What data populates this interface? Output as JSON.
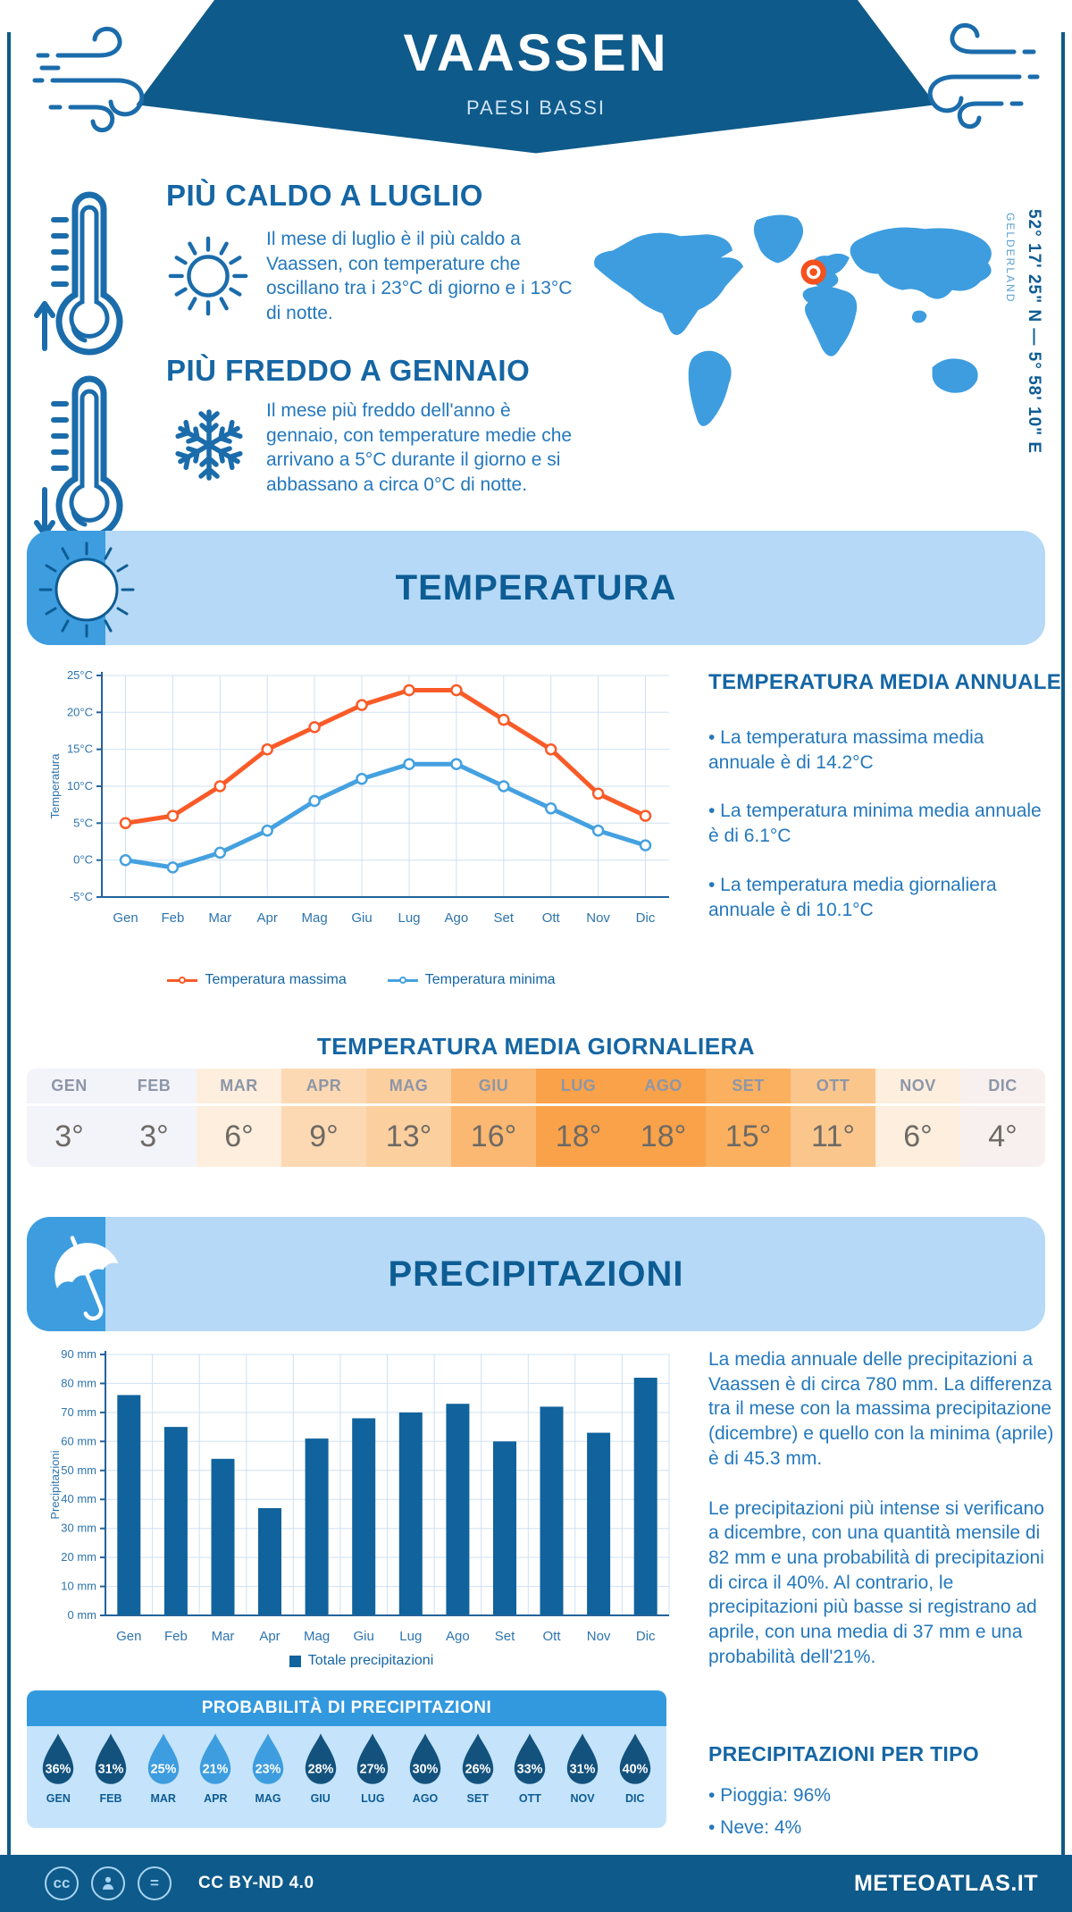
{
  "colors": {
    "primary_dark_blue": "#0e5a8a",
    "heading_blue": "#1566a4",
    "body_blue": "#2478bd",
    "band_light_blue": "#b5d9f6",
    "band_icon_blue": "#3d9ddf",
    "map_blue": "#3d9ddf",
    "marker_orange": "#f4511e",
    "temp_max_orange": "#f95b28",
    "temp_min_blue": "#45a1e0",
    "bar_blue": "#10639c",
    "prob_header_blue": "#3399de",
    "prob_body_blue": "#c5e4fb",
    "drop_dark": "#14527e",
    "drop_light": "#3d9ddf"
  },
  "header": {
    "title": "VAASSEN",
    "subtitle": "PAESI BASSI"
  },
  "location": {
    "coordinates": "52° 17' 25\" N — 5° 58' 10\" E",
    "region": "GELDERLAND"
  },
  "highlights": {
    "warmest": {
      "title": "PIÙ CALDO A LUGLIO",
      "text": "Il mese di luglio è il più caldo a Vaassen, con temperature che oscillano tra i 23°C di giorno e i 13°C di notte."
    },
    "coldest": {
      "title": "PIÙ FREDDO A GENNAIO",
      "text": "Il mese più freddo dell'anno è gennaio, con temperature medie che arrivano a 5°C durante il giorno e si abbassano a circa 0°C di notte."
    }
  },
  "temperature": {
    "section_title": "TEMPERATURA",
    "annual": {
      "title": "TEMPERATURA MEDIA ANNUALE",
      "bullets": [
        "• La temperatura massima media annuale è di 14.2°C",
        "• La temperatura minima media annuale è di 6.1°C",
        "• La temperatura media giornaliera annuale è di 10.1°C"
      ]
    },
    "daily": {
      "title": "TEMPERATURA MEDIA GIORNALIERA",
      "months": [
        "GEN",
        "FEB",
        "MAR",
        "APR",
        "MAG",
        "GIU",
        "LUG",
        "AGO",
        "SET",
        "OTT",
        "NOV",
        "DIC"
      ],
      "values": [
        "3°",
        "3°",
        "6°",
        "9°",
        "13°",
        "16°",
        "18°",
        "18°",
        "15°",
        "11°",
        "6°",
        "4°"
      ],
      "cell_colors": [
        "#f3f3fa",
        "#f3f3fa",
        "#fdeedd",
        "#fdd9b3",
        "#fccf9e",
        "#fab873",
        "#f9a24a",
        "#f9a24a",
        "#fab05f",
        "#fbc68c",
        "#fdeedd",
        "#f7f0ee"
      ]
    }
  },
  "precipitation": {
    "section_title": "PRECIPITAZIONI",
    "summary": [
      "La media annuale delle precipitazioni a Vaassen è di circa 780 mm. La differenza tra il mese con la massima precipitazione (dicembre) e quello con la minima (aprile) è di 45.3 mm.",
      "Le precipitazioni più intense si verificano a dicembre, con una quantità mensile di 82 mm e una probabilità di precipitazioni di circa il 40%. Al contrario, le precipitazioni più basse si registrano ad aprile, con una media di 37 mm e una probabilità dell'21%."
    ],
    "probability": {
      "title": "PROBABILITÀ DI PRECIPITAZIONI",
      "months": [
        "GEN",
        "FEB",
        "MAR",
        "APR",
        "MAG",
        "GIU",
        "LUG",
        "AGO",
        "SET",
        "OTT",
        "NOV",
        "DIC"
      ],
      "values": [
        "36%",
        "31%",
        "25%",
        "21%",
        "23%",
        "28%",
        "27%",
        "30%",
        "26%",
        "33%",
        "31%",
        "40%"
      ],
      "drop_colors": [
        "#14527e",
        "#14527e",
        "#3d9ddf",
        "#3d9ddf",
        "#3d9ddf",
        "#14527e",
        "#14527e",
        "#14527e",
        "#14527e",
        "#14527e",
        "#14527e",
        "#14527e"
      ]
    },
    "by_type": {
      "title": "PRECIPITAZIONI PER TIPO",
      "bullets": [
        "• Pioggia: 96%",
        "• Neve: 4%"
      ]
    }
  },
  "chart_data": [
    {
      "type": "line",
      "title": "Temperatura",
      "categories": [
        "Gen",
        "Feb",
        "Mar",
        "Apr",
        "Mag",
        "Giu",
        "Lug",
        "Ago",
        "Set",
        "Ott",
        "Nov",
        "Dic"
      ],
      "series": [
        {
          "name": "Temperatura massima",
          "color": "#f95b28",
          "values": [
            5,
            6,
            10,
            15,
            18,
            21,
            23,
            23,
            19,
            15,
            9,
            6
          ]
        },
        {
          "name": "Temperatura minima",
          "color": "#45a1e0",
          "values": [
            0,
            -1,
            1,
            4,
            8,
            11,
            13,
            13,
            10,
            7,
            4,
            2
          ]
        }
      ],
      "xlabel": "",
      "ylabel": "Temperatura",
      "ylim": [
        -5,
        25
      ],
      "ytick_step": 5,
      "ytick_suffix": "°C",
      "grid": true,
      "legend_position": "bottom"
    },
    {
      "type": "bar",
      "title": "Precipitazioni",
      "categories": [
        "Gen",
        "Feb",
        "Mar",
        "Apr",
        "Mag",
        "Giu",
        "Lug",
        "Ago",
        "Set",
        "Ott",
        "Nov",
        "Dic"
      ],
      "series": [
        {
          "name": "Totale precipitazioni",
          "color": "#10639c",
          "values": [
            76,
            65,
            54,
            37,
            61,
            68,
            70,
            73,
            60,
            72,
            63,
            82
          ]
        }
      ],
      "xlabel": "",
      "ylabel": "Precipitazioni",
      "ylim": [
        0,
        90
      ],
      "ytick_step": 10,
      "ytick_suffix": " mm",
      "grid": true,
      "legend_position": "bottom"
    }
  ],
  "footer": {
    "license": "CC BY-ND 4.0",
    "brand": "METEOATLAS.IT"
  }
}
